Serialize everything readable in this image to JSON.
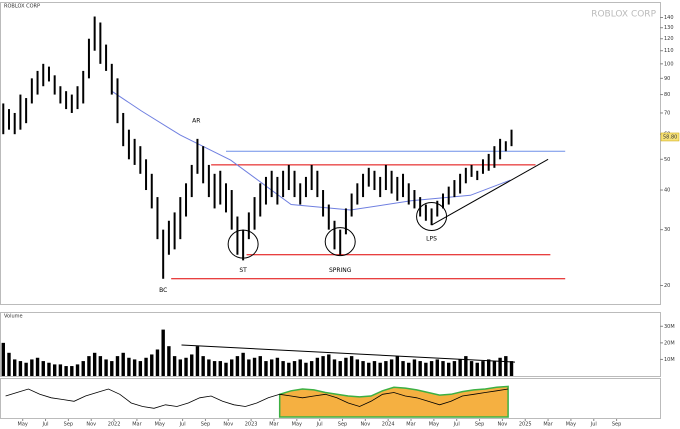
{
  "chart_data": [
    {
      "type": "range",
      "title": "ROBLOX CORP",
      "watermark": "ROBLOX CORP",
      "color": "#000000",
      "log": true,
      "x": [
        2.3,
        2.8,
        3.3,
        3.8,
        4.3,
        4.8,
        5.3,
        5.8,
        6.3,
        6.8,
        7.3,
        7.8,
        8.3,
        8.8,
        9.3,
        9.8,
        10.3,
        10.8,
        11.3,
        11.8,
        12.3,
        12.8,
        13.3,
        13.8,
        14.3,
        14.8,
        15.3,
        15.8,
        16.3,
        16.8,
        17.3,
        17.8,
        18.3,
        18.8,
        19.3,
        19.8,
        20.3,
        20.8,
        21.3,
        21.8,
        22.3,
        22.8,
        23.3,
        23.8,
        24.3,
        24.8,
        25.3,
        25.8,
        26.3,
        26.8,
        27.3,
        27.8,
        28.3,
        28.8,
        29.3,
        29.8,
        30.3,
        30.8,
        31.3,
        31.8,
        32.3,
        32.8,
        33.3,
        33.8,
        34.3,
        34.8,
        35.3,
        35.8,
        36.3,
        36.8,
        37.3,
        37.8,
        38.3,
        38.8,
        39.3,
        39.8,
        40.3,
        40.8,
        41.3,
        41.8,
        42.3,
        42.8,
        43.3,
        43.8,
        44.3,
        44.8,
        45.3,
        45.8,
        46.3,
        46.8
      ],
      "high": [
        75,
        72,
        70,
        80,
        78,
        90,
        95,
        100,
        98,
        92,
        85,
        82,
        80,
        85,
        95,
        120,
        141,
        135,
        115,
        100,
        90,
        70,
        62,
        58,
        55,
        50,
        45,
        38,
        30,
        32,
        34,
        38,
        42,
        48,
        58,
        55,
        48,
        45,
        46,
        42,
        40,
        33,
        30,
        34,
        38,
        42,
        44,
        46,
        44,
        46,
        48,
        46,
        42,
        44,
        48,
        46,
        40,
        36,
        32,
        30,
        35,
        39,
        42,
        45,
        47,
        46,
        44,
        48,
        46,
        44,
        45,
        42,
        40,
        38,
        36,
        35,
        37,
        39,
        41,
        43,
        45,
        47,
        48,
        46,
        50,
        52,
        55,
        58,
        57,
        62
      ],
      "low": [
        60,
        62,
        60,
        62,
        65,
        75,
        80,
        85,
        88,
        80,
        75,
        72,
        70,
        72,
        75,
        90,
        110,
        100,
        95,
        80,
        65,
        55,
        50,
        48,
        45,
        40,
        35,
        28,
        21,
        25,
        26,
        28,
        33,
        38,
        45,
        42,
        38,
        35,
        36,
        34,
        30,
        25,
        24,
        28,
        30,
        33,
        36,
        38,
        36,
        38,
        40,
        38,
        36,
        38,
        40,
        38,
        33,
        30,
        26,
        25,
        29,
        33,
        36,
        38,
        41,
        40,
        38,
        40,
        39,
        37,
        38,
        36,
        35,
        33,
        32,
        31,
        33,
        35,
        36,
        38,
        39,
        42,
        44,
        43,
        45,
        46,
        47,
        50,
        53,
        55
      ],
      "xlim": [
        2.1,
        59.8
      ],
      "ylim": [
        18,
        150
      ],
      "xticks": [
        {
          "value": 4,
          "label": "May"
        },
        {
          "value": 6,
          "label": "Jul"
        },
        {
          "value": 8,
          "label": "Sep"
        },
        {
          "value": 10,
          "label": "Nov"
        },
        {
          "value": 12,
          "label": "2022"
        },
        {
          "value": 14,
          "label": "Mar"
        },
        {
          "value": 16,
          "label": "May"
        },
        {
          "value": 18,
          "label": "Jul"
        },
        {
          "value": 20,
          "label": "Sep"
        },
        {
          "value": 22,
          "label": "Nov"
        },
        {
          "value": 24,
          "label": "2023"
        },
        {
          "value": 26,
          "label": "Mar"
        },
        {
          "value": 28,
          "label": "May"
        },
        {
          "value": 30,
          "label": "Jul"
        },
        {
          "value": 32,
          "label": "Sep"
        },
        {
          "value": 34,
          "label": "Nov"
        },
        {
          "value": 36,
          "label": "2024"
        },
        {
          "value": 38,
          "label": "Mar"
        },
        {
          "value": 40,
          "label": "May"
        },
        {
          "value": 42,
          "label": "Jul"
        },
        {
          "value": 44,
          "label": "Sep"
        },
        {
          "value": 46,
          "label": "Nov"
        },
        {
          "value": 48,
          "label": "2025"
        },
        {
          "value": 50,
          "label": "Mar"
        },
        {
          "value": 52,
          "label": "May"
        },
        {
          "value": 54,
          "label": "Jul"
        },
        {
          "value": 56,
          "label": "Sep"
        }
      ],
      "yticks": [
        20,
        30,
        40,
        50,
        60,
        70,
        80,
        90,
        100,
        110,
        120,
        130,
        140
      ],
      "levels": [
        {
          "value": 53,
          "color": "#6f8fe8",
          "x": [
            21.8,
            51.5
          ]
        },
        {
          "value": 48,
          "color": "#e00000",
          "x": [
            20.5,
            48.9
          ]
        },
        {
          "value": 25,
          "color": "#e00000",
          "x": [
            23.6,
            50.2
          ]
        },
        {
          "value": 21,
          "color": "#e00000",
          "x": [
            17,
            51.5
          ]
        }
      ],
      "trendline": {
        "color": "#000000",
        "x": [
          39.8,
          50
        ],
        "values": [
          31,
          50
        ]
      },
      "ma": {
        "color": "#6f7fe0",
        "x": [
          11.8,
          14.4,
          17.8,
          22.2,
          27.5,
          32.7,
          38,
          43.2,
          46.7
        ],
        "values": [
          82,
          71,
          59.6,
          49.7,
          36,
          34.6,
          37,
          38.5,
          43
        ]
      },
      "annotations": [
        {
          "text": "AR",
          "x": 19.2,
          "y": 66
        },
        {
          "text": "ST",
          "x": 23.3,
          "y": 22.3
        },
        {
          "text": "SPRING",
          "x": 31.8,
          "y": 22.3
        },
        {
          "text": "LPS",
          "x": 39.8,
          "y": 28
        },
        {
          "text": "BC",
          "x": 16.3,
          "y": 19.3
        }
      ],
      "circles": [
        {
          "x": 23.3,
          "y": 27
        },
        {
          "x": 31.8,
          "y": 27.5
        },
        {
          "x": 39.8,
          "y": 33
        }
      ],
      "last": {
        "value": 58.8,
        "label": "58.80"
      }
    },
    {
      "type": "bar",
      "label": "Volume",
      "color": "#000000",
      "x": [
        2.3,
        2.8,
        3.3,
        3.8,
        4.3,
        4.8,
        5.3,
        5.8,
        6.3,
        6.8,
        7.3,
        7.8,
        8.3,
        8.8,
        9.3,
        9.8,
        10.3,
        10.8,
        11.3,
        11.8,
        12.3,
        12.8,
        13.3,
        13.8,
        14.3,
        14.8,
        15.3,
        15.8,
        16.3,
        16.8,
        17.3,
        17.8,
        18.3,
        18.8,
        19.3,
        19.8,
        20.3,
        20.8,
        21.3,
        21.8,
        22.3,
        22.8,
        23.3,
        23.8,
        24.3,
        24.8,
        25.3,
        25.8,
        26.3,
        26.8,
        27.3,
        27.8,
        28.3,
        28.8,
        29.3,
        29.8,
        30.3,
        30.8,
        31.3,
        31.8,
        32.3,
        32.8,
        33.3,
        33.8,
        34.3,
        34.8,
        35.3,
        35.8,
        36.3,
        36.8,
        37.3,
        37.8,
        38.3,
        38.8,
        39.3,
        39.8,
        40.3,
        40.8,
        41.3,
        41.8,
        42.3,
        42.8,
        43.3,
        43.8,
        44.3,
        44.8,
        45.3,
        45.8,
        46.3,
        46.8
      ],
      "values": [
        20,
        14,
        10,
        9,
        8,
        10,
        11,
        9,
        8,
        7,
        7,
        6,
        6,
        7,
        9,
        12,
        14,
        12,
        10,
        9,
        12,
        14,
        11,
        10,
        9,
        11,
        13,
        16,
        28,
        18,
        12,
        10,
        11,
        13,
        18,
        12,
        10,
        9,
        9,
        8,
        10,
        12,
        14,
        10,
        11,
        12,
        9,
        10,
        11,
        9,
        8,
        9,
        10,
        8,
        9,
        11,
        12,
        13,
        10,
        9,
        11,
        12,
        10,
        9,
        8,
        9,
        8,
        9,
        10,
        12,
        9,
        8,
        10,
        9,
        8,
        9,
        10,
        9,
        8,
        9,
        10,
        12,
        9,
        8,
        9,
        10,
        9,
        11,
        12,
        9
      ],
      "ylim": [
        0,
        35
      ],
      "yticks": [
        {
          "value": 10,
          "label": "10M"
        },
        {
          "value": 20,
          "label": "20M"
        },
        {
          "value": 30,
          "label": "30M"
        }
      ],
      "trendline": {
        "color": "#000000",
        "x": [
          17.9,
          47.1
        ],
        "values": [
          18.7,
          8.4
        ]
      }
    },
    {
      "type": "line",
      "color": "#000000",
      "x": [
        2.5,
        3.5,
        4.5,
        5.5,
        6.5,
        7.5,
        8.5,
        9.5,
        10.5,
        11.5,
        12.5,
        13.5,
        14.5,
        15.5,
        16.5,
        17.5,
        18.5,
        19.5,
        20.5,
        21.5,
        22.5,
        23.5,
        24.5,
        25.5,
        26.5,
        27.5,
        28.5,
        29.5,
        30.5,
        31.5,
        32.5,
        33.5,
        34.5,
        35.5,
        36.5,
        37.5,
        38.5,
        39.5,
        40.5,
        41.5,
        42.5,
        43.5,
        44.5,
        45.5,
        46.5
      ],
      "values": [
        20,
        40,
        60,
        30,
        10,
        0,
        -10,
        20,
        40,
        60,
        30,
        -20,
        -40,
        -50,
        -30,
        -40,
        -20,
        10,
        20,
        -10,
        -30,
        -40,
        -20,
        10,
        30,
        20,
        10,
        20,
        30,
        10,
        -20,
        -40,
        -10,
        30,
        40,
        20,
        10,
        -10,
        -30,
        -10,
        20,
        30,
        40,
        50,
        60
      ],
      "area": {
        "color": "#f5b041",
        "x": [
          26.5,
          27.5,
          28.5,
          29.5,
          30.5,
          31.5,
          32.5,
          33.5,
          34.5,
          35.5,
          36.5,
          37.5,
          38.5,
          39.5,
          40.5,
          41.5,
          42.5,
          43.5,
          44.5,
          45.5,
          46.5
        ],
        "values": [
          30,
          50,
          60,
          55,
          40,
          30,
          20,
          15,
          20,
          50,
          70,
          65,
          55,
          40,
          25,
          30,
          45,
          55,
          60,
          70,
          75
        ]
      },
      "ylim": [
        -100,
        100
      ]
    }
  ]
}
